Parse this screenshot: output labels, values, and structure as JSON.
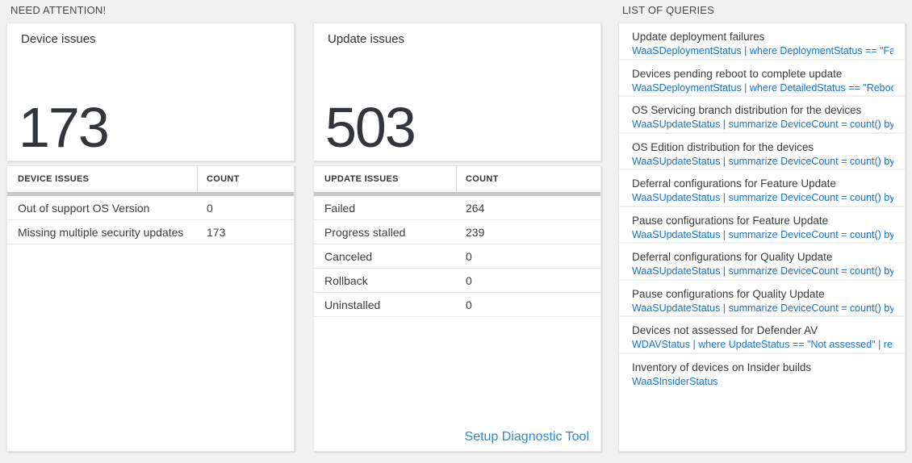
{
  "need_attention": {
    "section_title": "NEED ATTENTION!",
    "device_issues": {
      "title": "Device issues",
      "count": "173",
      "table": {
        "headers": [
          "DEVICE ISSUES",
          "COUNT"
        ],
        "rows": [
          {
            "label": "Out of support OS Version",
            "count": "0"
          },
          {
            "label": "Missing multiple security updates",
            "count": "173"
          }
        ]
      }
    },
    "update_issues": {
      "title": "Update issues",
      "count": "503",
      "table": {
        "headers": [
          "UPDATE ISSUES",
          "COUNT"
        ],
        "rows": [
          {
            "label": "Failed",
            "count": "264"
          },
          {
            "label": "Progress stalled",
            "count": "239"
          },
          {
            "label": "Canceled",
            "count": "0"
          },
          {
            "label": "Rollback",
            "count": "0"
          },
          {
            "label": "Uninstalled",
            "count": "0"
          }
        ]
      },
      "footer_link": "Setup Diagnostic Tool"
    }
  },
  "queries_panel": {
    "section_title": "LIST OF QUERIES",
    "items": [
      {
        "title": "Update deployment failures",
        "query": "WaaSDeploymentStatus | where DeploymentStatus == \"Failed\" |..."
      },
      {
        "title": "Devices pending reboot to complete update",
        "query": "WaaSDeploymentStatus | where DetailedStatus == \"Reboot pend..."
      },
      {
        "title": "OS Servicing branch distribution for the devices",
        "query": "WaaSUpdateStatus | summarize DeviceCount = count() by OSSer..."
      },
      {
        "title": "OS Edition distribution for the devices",
        "query": "WaaSUpdateStatus | summarize DeviceCount = count() by OSEdit..."
      },
      {
        "title": "Deferral configurations for Feature Update",
        "query": "WaaSUpdateStatus | summarize DeviceCount = count() by Featur..."
      },
      {
        "title": "Pause configurations for Feature Update",
        "query": "WaaSUpdateStatus | summarize DeviceCount = count() by Featur..."
      },
      {
        "title": "Deferral configurations for Quality Update",
        "query": "WaaSUpdateStatus | summarize DeviceCount = count() by Qualit..."
      },
      {
        "title": "Pause configurations for Quality Update",
        "query": "WaaSUpdateStatus | summarize DeviceCount = count() by Qualit..."
      },
      {
        "title": "Devices not assessed for Defender AV",
        "query": "WDAVStatus | where UpdateStatus == \"Not assessed\" | render ta..."
      },
      {
        "title": "Inventory of devices on Insider builds",
        "query": "WaaSInsiderStatus"
      }
    ]
  },
  "colors": {
    "background": "#f1f1f1",
    "card": "#ffffff",
    "query_link_blue": "#1873c8",
    "action_link_blue": "#2b88d8",
    "number_dark": "#32363b",
    "thick_divider": "#c8c8c8"
  }
}
